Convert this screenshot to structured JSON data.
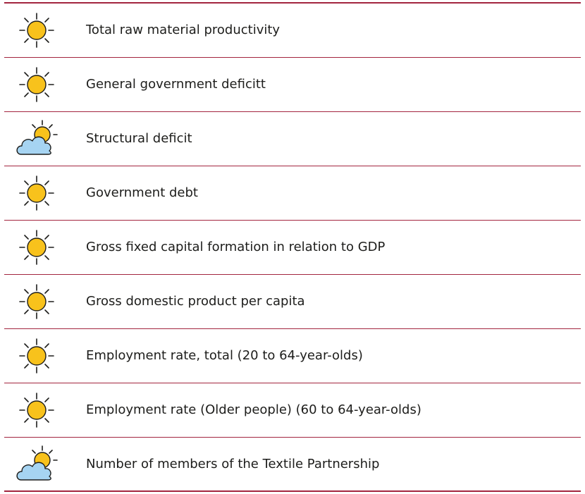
{
  "table": {
    "rows": [
      "Total raw material productivity",
      "General government deficitt",
      "Structural deficit",
      "Government debt",
      "Gross fixed capital formation in relation to GDP",
      "Gross domestic product per capita",
      "Employment rate, total (20 to 64-year-olds)",
      "Employment rate (Older people) (60 to 64-year-olds)",
      "Number of members of the Textile Partnership"
    ]
  }
}
